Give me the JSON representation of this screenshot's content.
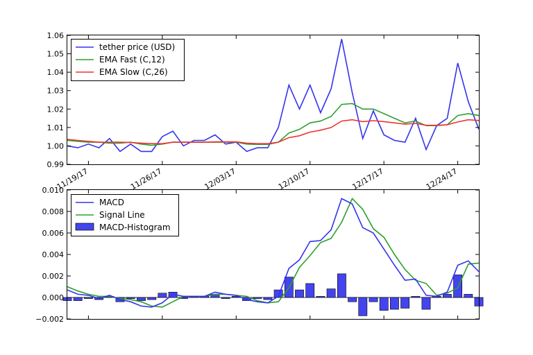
{
  "chart_data": [
    {
      "type": "line",
      "title": "",
      "xlabel": "",
      "ylabel": "",
      "ylim": [
        0.99,
        1.06
      ],
      "yticks": [
        "0.99",
        "1.00",
        "1.01",
        "1.02",
        "1.03",
        "1.04",
        "1.05",
        "1.06"
      ],
      "ytick_values": [
        0.99,
        1.0,
        1.01,
        1.02,
        1.03,
        1.04,
        1.05,
        1.06
      ],
      "xticks": [
        {
          "label": "11/19/17",
          "index": 2
        },
        {
          "label": "11/26/17",
          "index": 9
        },
        {
          "label": "12/03/17",
          "index": 16
        },
        {
          "label": "12/10/17",
          "index": 23
        },
        {
          "label": "12/17/17",
          "index": 30
        },
        {
          "label": "12/24/17",
          "index": 37
        }
      ],
      "legend_position": "top-left",
      "series": [
        {
          "name": "tether price (USD)",
          "color": "#3333ee",
          "values": [
            1.0,
            0.999,
            1.001,
            0.999,
            1.004,
            0.997,
            1.001,
            0.997,
            0.997,
            1.005,
            1.008,
            1.0,
            1.003,
            1.003,
            1.006,
            1.001,
            1.002,
            0.997,
            0.999,
            0.999,
            1.01,
            1.033,
            1.02,
            1.033,
            1.018,
            1.031,
            1.058,
            1.029,
            1.004,
            1.019,
            1.006,
            1.003,
            1.002,
            1.015,
            0.998,
            1.011,
            1.015,
            1.045,
            1.024,
            1.009
          ]
        },
        {
          "name": "EMA Fast (C,12)",
          "color": "#2ca02c",
          "values": [
            1.003,
            1.0025,
            1.002,
            1.002,
            1.0015,
            1.0015,
            1.002,
            1.001,
            1.0003,
            1.001,
            1.002,
            1.002,
            1.002,
            1.002,
            1.002,
            1.002,
            1.002,
            1.001,
            1.0008,
            1.0008,
            1.002,
            1.007,
            1.009,
            1.0125,
            1.0135,
            1.016,
            1.0225,
            1.023,
            1.02,
            1.02,
            1.0175,
            1.015,
            1.0125,
            1.0135,
            1.011,
            1.011,
            1.0115,
            1.0165,
            1.0175,
            1.0165
          ]
        },
        {
          "name": "EMA Slow (C,26)",
          "color": "#ee3333",
          "values": [
            1.0035,
            1.003,
            1.0025,
            1.002,
            1.002,
            1.002,
            1.0018,
            1.0015,
            1.0012,
            1.0012,
            1.002,
            1.002,
            1.002,
            1.002,
            1.0022,
            1.0022,
            1.0022,
            1.0015,
            1.0012,
            1.0012,
            1.002,
            1.0045,
            1.0055,
            1.0075,
            1.0085,
            1.01,
            1.0135,
            1.0142,
            1.0132,
            1.0137,
            1.0132,
            1.0125,
            1.0118,
            1.0122,
            1.0112,
            1.0112,
            1.0115,
            1.013,
            1.0142,
            1.0138
          ]
        }
      ]
    },
    {
      "type": "line",
      "title": "",
      "xlabel": "",
      "ylabel": "",
      "ylim": [
        -0.002,
        0.01
      ],
      "yticks": [
        "−0.002",
        "0.000",
        "0.002",
        "0.004",
        "0.006",
        "0.008",
        "0.010"
      ],
      "ytick_values": [
        -0.002,
        0.0,
        0.002,
        0.004,
        0.006,
        0.008,
        0.01
      ],
      "legend_position": "top-left",
      "series": [
        {
          "name": "MACD",
          "color": "#3333ee",
          "values": [
            0.0007,
            0.0003,
            0.0002,
            -0.0001,
            0.0002,
            -0.0002,
            -0.0004,
            -0.0008,
            -0.0009,
            -0.0005,
            0.0003,
            0.0001,
            0.0001,
            0.0001,
            0.0005,
            0.0003,
            0.0002,
            -0.0002,
            -0.0004,
            -0.0005,
            0.0001,
            0.0027,
            0.0035,
            0.0052,
            0.0053,
            0.0063,
            0.0092,
            0.0087,
            0.0065,
            0.006,
            0.0045,
            0.003,
            0.0016,
            0.0017,
            0.0002,
            0.0001,
            0.0005,
            0.003,
            0.0034,
            0.0024
          ]
        },
        {
          "name": "Signal Line",
          "color": "#2ca02c",
          "values": [
            0.001,
            0.0006,
            0.0003,
            0.0001,
            0.0001,
            -0.0001,
            -0.0002,
            -0.0004,
            -0.0008,
            -0.0009,
            -0.0004,
            0.0001,
            0.0001,
            0.0001,
            0.0003,
            0.0003,
            0.0002,
            0.0001,
            -0.0003,
            -0.0005,
            -0.0004,
            0.0009,
            0.0028,
            0.0039,
            0.0051,
            0.0055,
            0.007,
            0.0092,
            0.0082,
            0.0064,
            0.0056,
            0.004,
            0.0026,
            0.0016,
            0.0013,
            0.0002,
            0.0004,
            0.0009,
            0.0031,
            0.0032
          ]
        },
        {
          "name": "MACD-Histogram",
          "color": "#3333ee",
          "type": "bar",
          "values": [
            -0.0003,
            -0.0003,
            -0.0001,
            -0.0002,
            0.0001,
            -0.0004,
            -0.0001,
            -0.0003,
            -0.0002,
            0.0004,
            0.0005,
            -0.0001,
            0.0001,
            0.0001,
            0.0003,
            -0.0001,
            0.0001,
            -0.0003,
            -0.0001,
            -0.0002,
            0.0007,
            0.0019,
            0.0007,
            0.0013,
            0.0001,
            0.0008,
            0.0022,
            -0.0004,
            -0.0017,
            -0.0004,
            -0.0012,
            -0.0011,
            -0.001,
            0.0001,
            -0.0011,
            0.0001,
            0.0003,
            0.0021,
            0.0003,
            -0.0008
          ]
        }
      ]
    }
  ]
}
